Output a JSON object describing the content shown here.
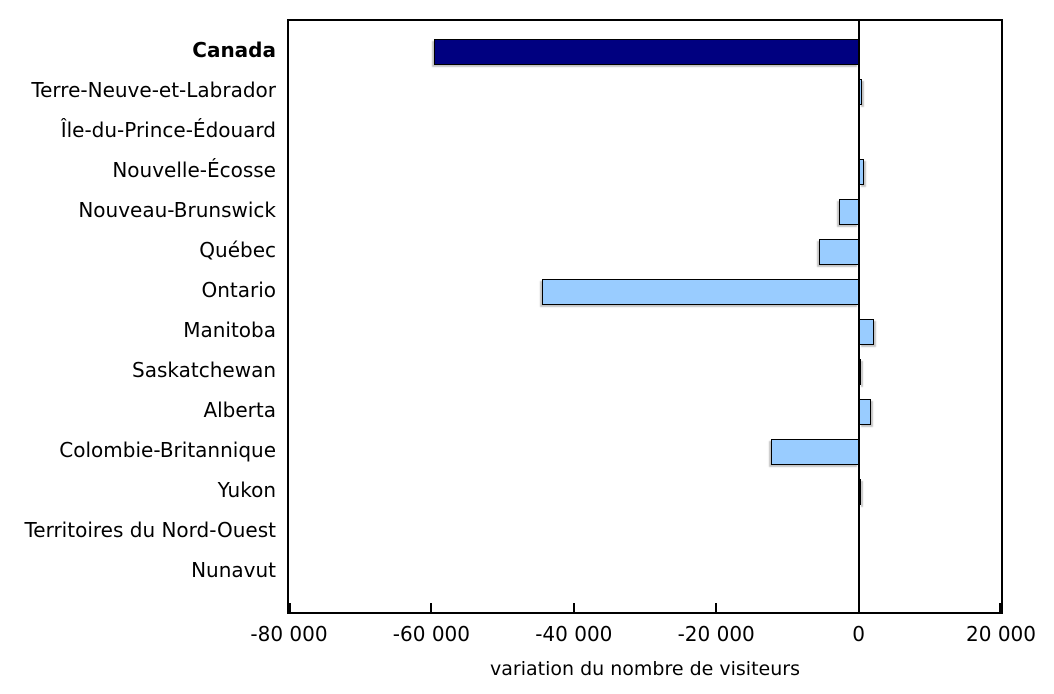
{
  "chart_data": {
    "type": "bar",
    "orientation": "horizontal",
    "xlabel": "variation du nombre de visiteurs",
    "xlim": [
      -80000,
      20000
    ],
    "xticks": [
      -80000,
      -60000,
      -40000,
      -20000,
      0,
      20000
    ],
    "xtick_labels": [
      "-80 000",
      "-60 000",
      "-40 000",
      "-20 000",
      "0",
      "20 000"
    ],
    "categories": [
      "Canada",
      "Terre-Neuve-et-Labrador",
      "Île-du-Prince-Édouard",
      "Nouvelle-Écosse",
      "Nouveau-Brunswick",
      "Québec",
      "Ontario",
      "Manitoba",
      "Saskatchewan",
      "Alberta",
      "Colombie-Britannique",
      "Yukon",
      "Territoires du Nord-Ouest",
      "Nunavut"
    ],
    "values": [
      -59700,
      500,
      0,
      800,
      -2700,
      -5600,
      -44400,
      2200,
      400,
      1700,
      -12300,
      350,
      0,
      0
    ],
    "highlight_category": "Canada",
    "highlight_index": 0,
    "colors": {
      "highlight_bar": "#000080",
      "default_bar": "#99CCFF",
      "bar_border": "#000000",
      "axis": "#000000",
      "background": "#FFFFFF"
    },
    "legend": null,
    "grid": false,
    "zero_line": true
  }
}
